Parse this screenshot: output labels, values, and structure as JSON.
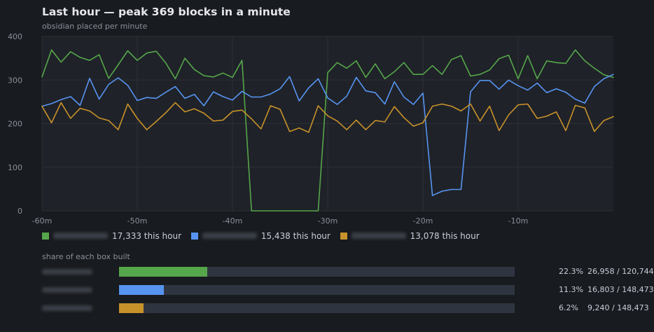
{
  "header": {
    "title": "Last hour — peak 369 blocks in a minute",
    "subtitle": "obsidian placed per minute"
  },
  "chart_data": {
    "type": "line",
    "x": [
      -60,
      -59,
      -58,
      -57,
      -56,
      -55,
      -54,
      -53,
      -52,
      -51,
      -50,
      -49,
      -48,
      -47,
      -46,
      -45,
      -44,
      -43,
      -42,
      -41,
      -40,
      -39,
      -38,
      -37,
      -36,
      -35,
      -34,
      -33,
      -32,
      -31,
      -30,
      -29,
      -28,
      -27,
      -26,
      -25,
      -24,
      -23,
      -22,
      -21,
      -20,
      -19,
      -18,
      -17,
      -16,
      -15,
      -14,
      -13,
      -12,
      -11,
      -10,
      -9,
      -8,
      -7,
      -6,
      -5,
      -4,
      -3,
      -2,
      -1,
      0
    ],
    "xlim": [
      -60,
      0
    ],
    "ylim": [
      0,
      400
    ],
    "xticks": [
      -60,
      -50,
      -40,
      -30,
      -20,
      -10
    ],
    "xtick_labels": [
      "-60m",
      "-50m",
      "-40m",
      "-30m",
      "-20m",
      "-10m"
    ],
    "yticks": [
      0,
      100,
      200,
      300,
      400
    ],
    "grid": true,
    "series": [
      {
        "color": "#56a64b",
        "values": [
          307,
          369,
          341,
          365,
          352,
          345,
          358,
          304,
          335,
          367,
          345,
          362,
          366,
          339,
          303,
          350,
          324,
          310,
          307,
          316,
          306,
          345,
          0,
          0,
          0,
          0,
          0,
          0,
          0,
          0,
          317,
          340,
          327,
          344,
          306,
          337,
          303,
          319,
          340,
          313,
          313,
          333,
          313,
          347,
          356,
          309,
          313,
          323,
          349,
          357,
          303,
          356,
          303,
          344,
          340,
          338,
          369,
          344,
          327,
          312,
          306
        ]
      },
      {
        "color": "#5794f2",
        "values": [
          240,
          246,
          255,
          262,
          242,
          304,
          256,
          290,
          305,
          288,
          253,
          260,
          258,
          272,
          285,
          258,
          267,
          241,
          273,
          262,
          254,
          274,
          261,
          261,
          268,
          280,
          308,
          252,
          282,
          303,
          259,
          244,
          263,
          306,
          275,
          271,
          245,
          296,
          261,
          244,
          270,
          35,
          45,
          49,
          49,
          273,
          299,
          299,
          279,
          300,
          287,
          277,
          293,
          271,
          280,
          272,
          256,
          247,
          285,
          303,
          313
        ]
      },
      {
        "color": "#c8922b",
        "values": [
          240,
          202,
          248,
          212,
          235,
          229,
          213,
          207,
          186,
          245,
          212,
          186,
          205,
          225,
          248,
          227,
          234,
          224,
          206,
          208,
          228,
          231,
          211,
          188,
          241,
          233,
          182,
          190,
          180,
          241,
          218,
          206,
          186,
          208,
          186,
          207,
          204,
          239,
          214,
          194,
          202,
          240,
          245,
          240,
          229,
          245,
          206,
          240,
          184,
          220,
          243,
          245,
          212,
          217,
          227,
          184,
          242,
          236,
          182,
          207,
          216
        ]
      }
    ]
  },
  "legend": [
    {
      "value": "17,333 this hour",
      "color": "#56a64b"
    },
    {
      "value": "15,438 this hour",
      "color": "#5794f2"
    },
    {
      "value": "13,078 this hour",
      "color": "#c8922b"
    }
  ],
  "share": {
    "label": "share of each box built",
    "rows": [
      {
        "fraction": 0.223,
        "pct": "22.3%",
        "count": "26,958 / 120,744",
        "color": "#56a64b"
      },
      {
        "fraction": 0.113,
        "pct": "11.3%",
        "count": "16,803 / 148,473",
        "color": "#5794f2"
      },
      {
        "fraction": 0.062,
        "pct": "6.2%",
        "count": "9,240 / 148,473",
        "color": "#c8922b"
      }
    ]
  }
}
